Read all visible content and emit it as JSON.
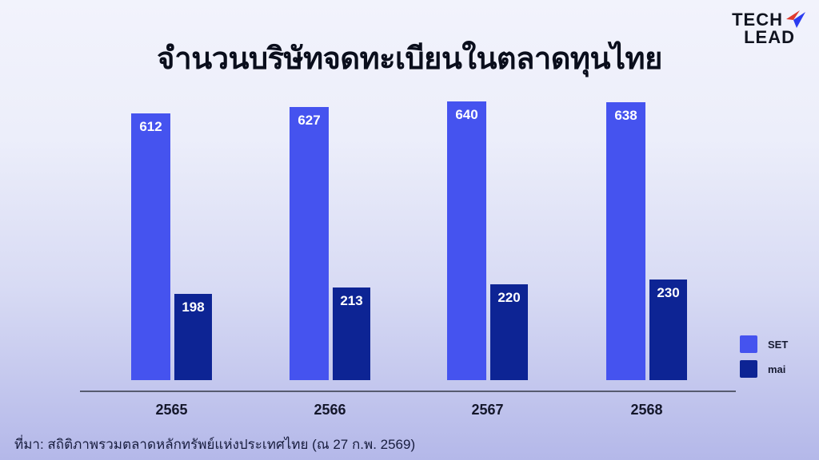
{
  "page": {
    "title": "จำนวนบริษัทจดทะเบียนในตลาดทุนไทย",
    "source_note": "ที่มา: สถิติภาพรวมตลาดหลักทรัพย์แห่งประเทศไทย (ณ 27 ก.พ. 2569)"
  },
  "logo": {
    "line1": "TECH",
    "line2": "LEAD",
    "icon": "paper-plane-icon",
    "icon_colors": {
      "red": "#e03a2e",
      "blue": "#2b3cf0"
    }
  },
  "chart_data": {
    "type": "bar",
    "title": "จำนวนบริษัทจดทะเบียนในตลาดทุนไทย",
    "categories": [
      "2565",
      "2566",
      "2567",
      "2568"
    ],
    "series": [
      {
        "name": "SET",
        "color": "#4553ef",
        "values": [
          612,
          627,
          640,
          638
        ]
      },
      {
        "name": "mai",
        "color": "#0d2494",
        "values": [
          198,
          213,
          220,
          230
        ]
      }
    ],
    "value_labels": true,
    "legend_position": "right",
    "xlabel": "",
    "ylabel": "",
    "ylim": [
      0,
      660
    ],
    "grid": false,
    "y_axis_visible": false,
    "source": "ที่มา: สถิติภาพรวมตลาดหลักทรัพย์แห่งประเทศไทย (ณ 27 ก.พ. 2569)"
  }
}
